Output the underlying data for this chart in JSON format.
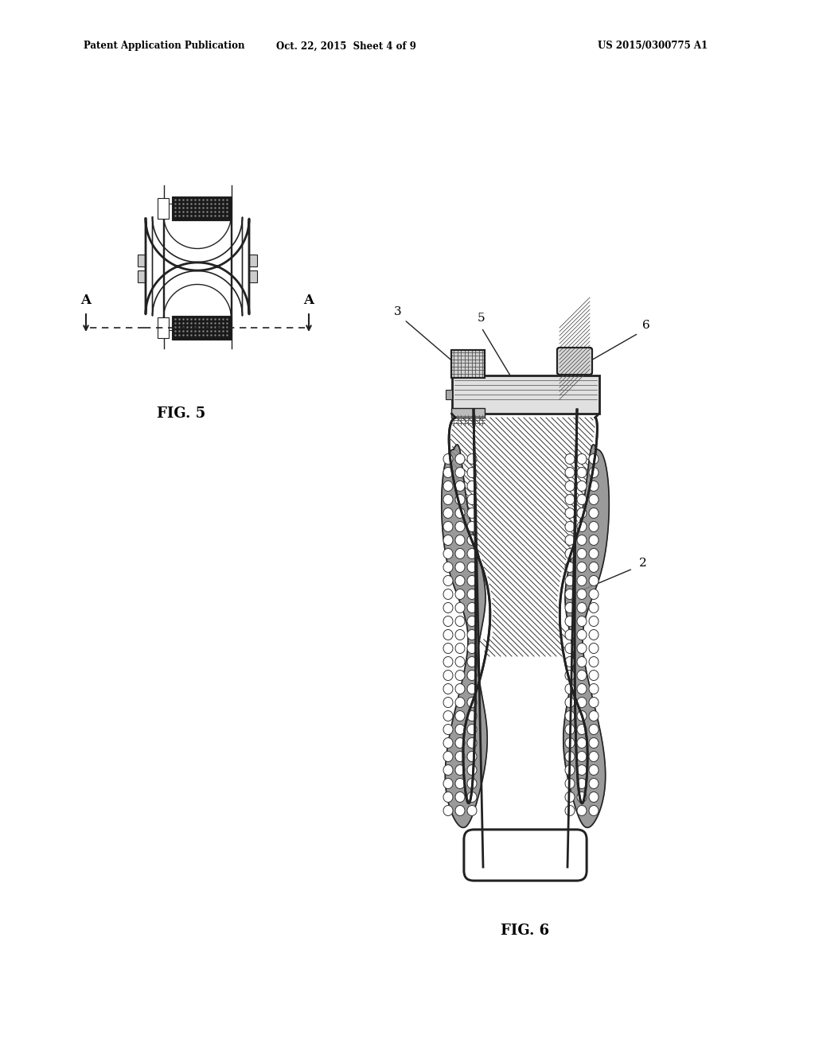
{
  "bg_color": "#ffffff",
  "header_left": "Patent Application Publication",
  "header_mid": "Oct. 22, 2015  Sheet 4 of 9",
  "header_right": "US 2015/0300775 A1",
  "fig5_label": "FIG. 5",
  "fig6_label": "FIG. 6",
  "label_A": "A",
  "ref_3": "3",
  "ref_5": "5",
  "ref_6": "6",
  "ref_2": "2",
  "line_color": "#222222",
  "hatch_color": "#444444"
}
